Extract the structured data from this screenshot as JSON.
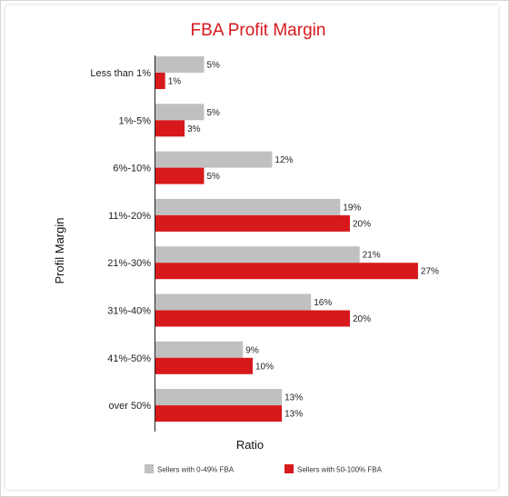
{
  "chart_data": {
    "type": "bar",
    "orientation": "horizontal",
    "title": "FBA Profit Margin",
    "xlabel": "Ratio",
    "ylabel": "Profil Margin",
    "categories": [
      "Less than 1%",
      "1%-5%",
      "6%-10%",
      "11%-20%",
      "21%-30%",
      "31%-40%",
      "41%-50%",
      "over 50%"
    ],
    "series": [
      {
        "name": "Sellers with 0-49% FBA",
        "color": "#c0c0c0",
        "values": [
          5,
          5,
          12,
          19,
          21,
          16,
          9,
          13
        ],
        "labels": [
          "5%",
          "5%",
          "12%",
          "19%",
          "21%",
          "16%",
          "9%",
          "13%"
        ]
      },
      {
        "name": "Sellers with 50-100% FBA",
        "color": "#d7191c",
        "values": [
          1,
          3,
          5,
          20,
          27,
          20,
          10,
          13
        ],
        "labels": [
          "1%",
          "3%",
          "5%",
          "20%",
          "27%",
          "20%",
          "10%",
          "13%"
        ]
      }
    ],
    "title_color": "#d7191c",
    "grid": false,
    "legend_position": "bottom"
  }
}
